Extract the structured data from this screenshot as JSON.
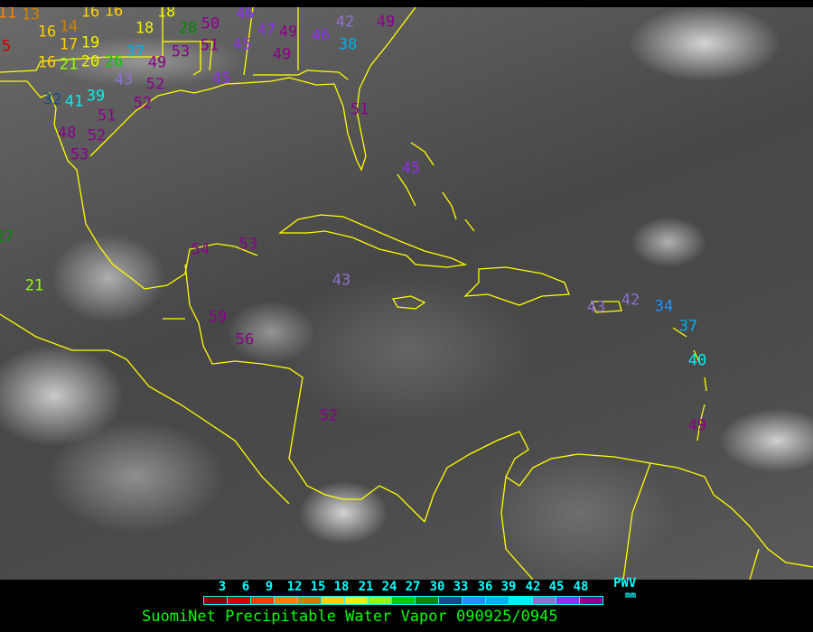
{
  "legend": {
    "ticks": [
      "3",
      "6",
      "9",
      "12",
      "15",
      "18",
      "21",
      "24",
      "27",
      "30",
      "33",
      "36",
      "39",
      "42",
      "45",
      "48"
    ],
    "colors": [
      "#8b0000",
      "#d00000",
      "#f04000",
      "#ff8000",
      "#d08000",
      "#ffd000",
      "#f0f000",
      "#90ff00",
      "#00cc00",
      "#008800",
      "#104e8b",
      "#1e90ff",
      "#00b0f0",
      "#00f0f0",
      "#9070d0",
      "#9030f0",
      "#8b008b"
    ],
    "unit_top": "PWV",
    "unit_bottom": "mm"
  },
  "title": "SuomiNet Precipitable Water Vapor 090925/0945",
  "coastline_color": "#ffff00",
  "stations": [
    "11",
    "13",
    "16",
    "16",
    "16",
    "14",
    "17",
    "19",
    "16",
    "21",
    "20",
    "26",
    "37",
    "49",
    "43",
    "18",
    "18",
    "28",
    "50",
    "53",
    "51",
    "45",
    "52",
    "52",
    "32",
    "41",
    "39",
    "51",
    "52",
    "48",
    "53",
    "5",
    "46",
    "47",
    "49",
    "45",
    "49",
    "46",
    "42",
    "38",
    "49",
    "51",
    "45",
    "54",
    "53",
    "43",
    "59",
    "56",
    "52",
    "43",
    "42",
    "34",
    "37",
    "40",
    "49",
    "27",
    "21"
  ]
}
